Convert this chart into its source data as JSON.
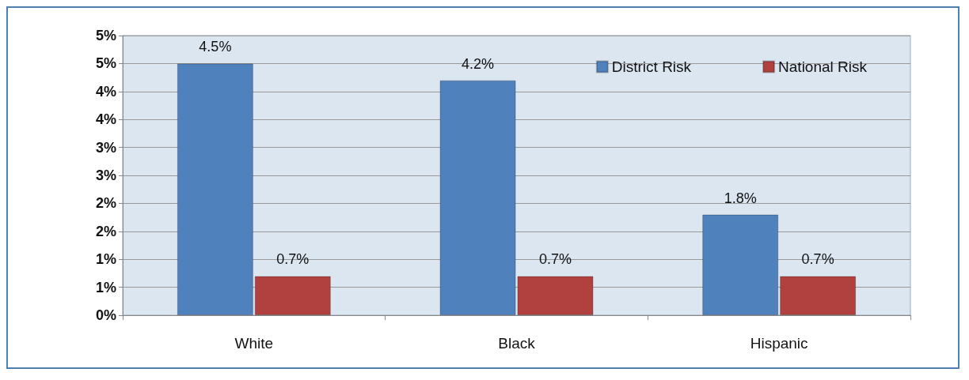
{
  "chart_data": {
    "type": "bar",
    "categories": [
      "White",
      "Black",
      "Hispanic"
    ],
    "series": [
      {
        "name": "District Risk",
        "color": "#4f81bd",
        "values": [
          4.5,
          4.2,
          1.8
        ],
        "value_labels": [
          "4.5%",
          "4.2%",
          "1.8%"
        ]
      },
      {
        "name": "National Risk",
        "color": "#b0413e",
        "values": [
          0.7,
          0.7,
          0.7
        ],
        "value_labels": [
          "0.7%",
          "0.7%",
          "0.7%"
        ]
      }
    ],
    "ylim": [
      0,
      5
    ],
    "yticks": [
      {
        "value": 0,
        "label": "0%"
      },
      {
        "value": 0.5,
        "label": "1%"
      },
      {
        "value": 1,
        "label": "1%"
      },
      {
        "value": 1.5,
        "label": "2%"
      },
      {
        "value": 2,
        "label": "2%"
      },
      {
        "value": 2.5,
        "label": "3%"
      },
      {
        "value": 3,
        "label": "3%"
      },
      {
        "value": 3.5,
        "label": "4%"
      },
      {
        "value": 4,
        "label": "4%"
      },
      {
        "value": 4.5,
        "label": "5%"
      },
      {
        "value": 5,
        "label": "5%"
      }
    ],
    "grid": "y",
    "legend": "top right"
  }
}
